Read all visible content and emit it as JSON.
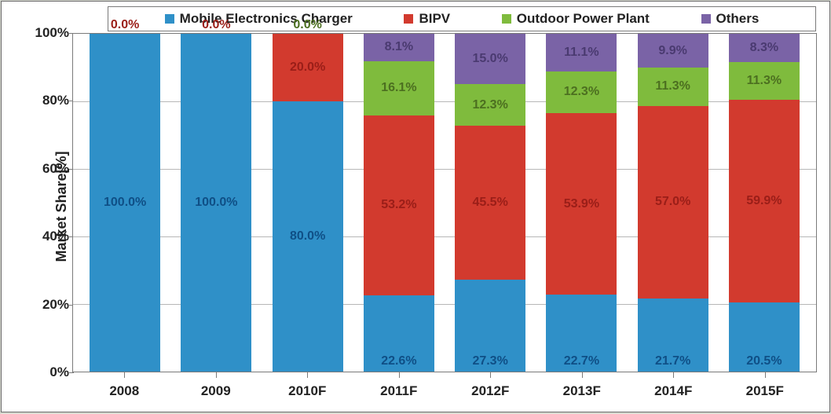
{
  "chart": {
    "type": "stacked-bar-percent",
    "background_color": "#ffffff",
    "border_color": "#7a7a7a",
    "grid_color": "#b7b7b7",
    "ylabel": "Market Share[%]",
    "ylabel_fontsize": 18,
    "ylim": [
      0,
      100
    ],
    "ytick_step": 20,
    "yticks": [
      "0%",
      "20%",
      "40%",
      "60%",
      "80%",
      "100%"
    ],
    "label_fontsize": 17,
    "value_label_fontsize": 16,
    "categories": [
      "2008",
      "2009",
      "2010F",
      "2011F",
      "2012F",
      "2013F",
      "2014F",
      "2015F"
    ],
    "series": [
      {
        "name": "Mobile Electronics Charger",
        "color": "#2f90c8",
        "label_color": "#0f4f86"
      },
      {
        "name": "BIPV",
        "color": "#d23a2e",
        "label_color": "#9a1e18"
      },
      {
        "name": "Outdoor Power Plant",
        "color": "#7fbb3d",
        "label_color": "#4c6f20"
      },
      {
        "name": "Others",
        "color": "#7a63a6",
        "label_color": "#4a3a70"
      }
    ],
    "stacks": [
      {
        "category": "2008",
        "segments": [
          {
            "series": 0,
            "value": 100.0,
            "label": "100.0%",
            "label_pos": "mid"
          },
          {
            "series": 1,
            "value": 0.0,
            "label": "0.0%",
            "label_pos": "top"
          }
        ]
      },
      {
        "category": "2009",
        "segments": [
          {
            "series": 0,
            "value": 100.0,
            "label": "100.0%",
            "label_pos": "mid"
          },
          {
            "series": 1,
            "value": 0.0,
            "label": "0.0%",
            "label_pos": "top"
          }
        ]
      },
      {
        "category": "2010F",
        "segments": [
          {
            "series": 0,
            "value": 80.0,
            "label": "80.0%",
            "label_pos": "mid"
          },
          {
            "series": 1,
            "value": 20.0,
            "label": "20.0%",
            "label_pos": "mid"
          },
          {
            "series": 2,
            "value": 0.0,
            "label": "0.0%",
            "label_pos": "top"
          }
        ]
      },
      {
        "category": "2011F",
        "segments": [
          {
            "series": 0,
            "value": 22.6,
            "label": "22.6%",
            "label_pos": "below"
          },
          {
            "series": 1,
            "value": 53.2,
            "label": "53.2%",
            "label_pos": "mid"
          },
          {
            "series": 2,
            "value": 16.1,
            "label": "16.1%",
            "label_pos": "mid"
          },
          {
            "series": 3,
            "value": 8.1,
            "label": "8.1%",
            "label_pos": "mid"
          }
        ]
      },
      {
        "category": "2012F",
        "segments": [
          {
            "series": 0,
            "value": 27.3,
            "label": "27.3%",
            "label_pos": "below"
          },
          {
            "series": 1,
            "value": 45.5,
            "label": "45.5%",
            "label_pos": "mid"
          },
          {
            "series": 2,
            "value": 12.3,
            "label": "12.3%",
            "label_pos": "mid"
          },
          {
            "series": 3,
            "value": 15.0,
            "label": "15.0%",
            "label_pos": "mid"
          }
        ]
      },
      {
        "category": "2013F",
        "segments": [
          {
            "series": 0,
            "value": 22.7,
            "label": "22.7%",
            "label_pos": "below"
          },
          {
            "series": 1,
            "value": 53.9,
            "label": "53.9%",
            "label_pos": "mid"
          },
          {
            "series": 2,
            "value": 12.3,
            "label": "12.3%",
            "label_pos": "mid"
          },
          {
            "series": 3,
            "value": 11.1,
            "label": "11.1%",
            "label_pos": "mid"
          }
        ]
      },
      {
        "category": "2014F",
        "segments": [
          {
            "series": 0,
            "value": 21.7,
            "label": "21.7%",
            "label_pos": "below"
          },
          {
            "series": 1,
            "value": 57.0,
            "label": "57.0%",
            "label_pos": "mid"
          },
          {
            "series": 2,
            "value": 11.3,
            "label": "11.3%",
            "label_pos": "mid"
          },
          {
            "series": 3,
            "value": 9.9,
            "label": "9.9%",
            "label_pos": "mid"
          }
        ]
      },
      {
        "category": "2015F",
        "segments": [
          {
            "series": 0,
            "value": 20.5,
            "label": "20.5%",
            "label_pos": "below"
          },
          {
            "series": 1,
            "value": 59.9,
            "label": "59.9%",
            "label_pos": "mid"
          },
          {
            "series": 2,
            "value": 11.3,
            "label": "11.3%",
            "label_pos": "mid"
          },
          {
            "series": 3,
            "value": 8.3,
            "label": "8.3%",
            "label_pos": "mid"
          }
        ]
      }
    ]
  }
}
